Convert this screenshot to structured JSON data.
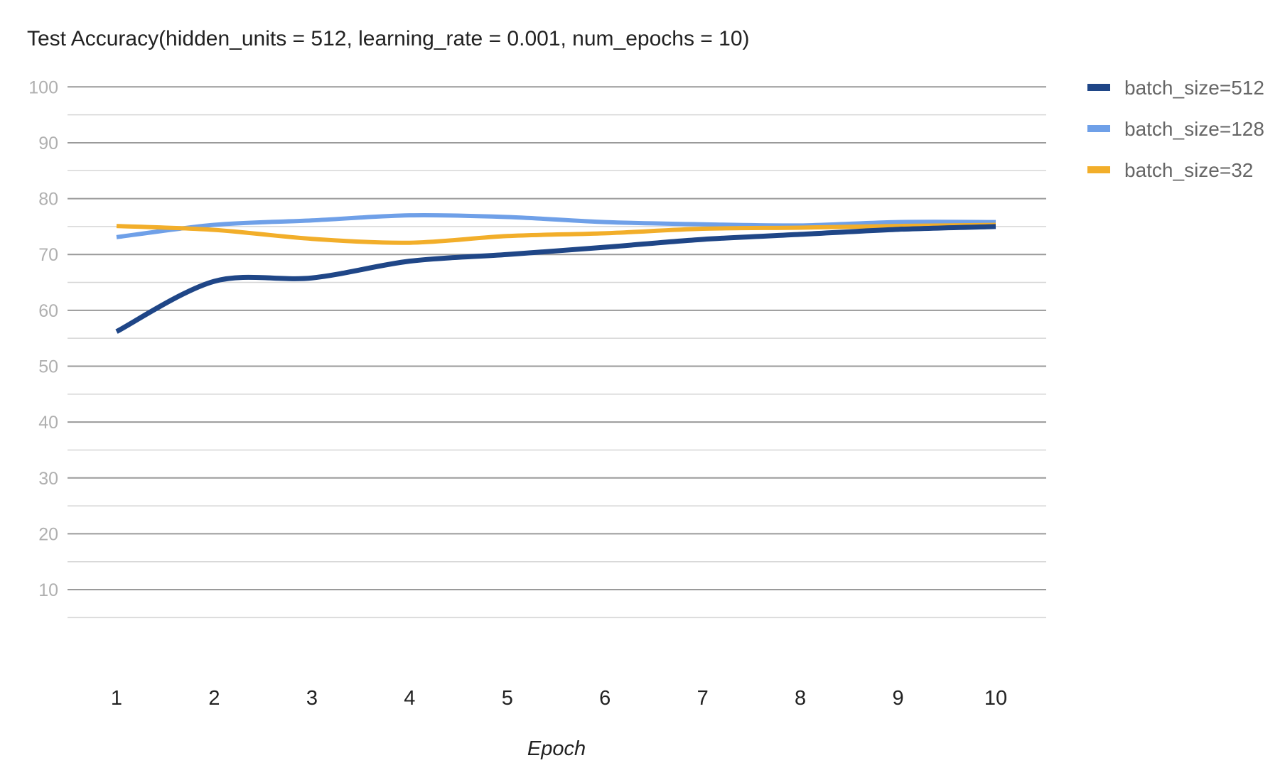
{
  "chart_data": {
    "type": "line",
    "title": "Test Accuracy(hidden_units = 512, learning_rate = 0.001, num_epochs = 10)",
    "xlabel": "Epoch",
    "ylabel": "",
    "x": [
      1,
      2,
      3,
      4,
      5,
      6,
      7,
      8,
      9,
      10
    ],
    "y_ticks": [
      10,
      20,
      30,
      40,
      50,
      60,
      70,
      80,
      90,
      100
    ],
    "ylim": [
      0,
      100
    ],
    "grid": true,
    "legend_position": "right",
    "series": [
      {
        "name": "batch_size=512",
        "color": "#1f4687",
        "values": [
          56.2,
          65.2,
          65.8,
          68.8,
          70.0,
          71.3,
          72.7,
          73.6,
          74.5,
          75.0
        ]
      },
      {
        "name": "batch_size=128",
        "color": "#6fa0e8",
        "values": [
          73.1,
          75.3,
          76.1,
          77.0,
          76.7,
          75.8,
          75.4,
          75.2,
          75.8,
          75.8
        ]
      },
      {
        "name": "batch_size=32",
        "color": "#f2ae2a",
        "values": [
          75.1,
          74.4,
          72.8,
          72.1,
          73.3,
          73.8,
          74.6,
          74.8,
          75.1,
          75.3
        ]
      }
    ]
  }
}
